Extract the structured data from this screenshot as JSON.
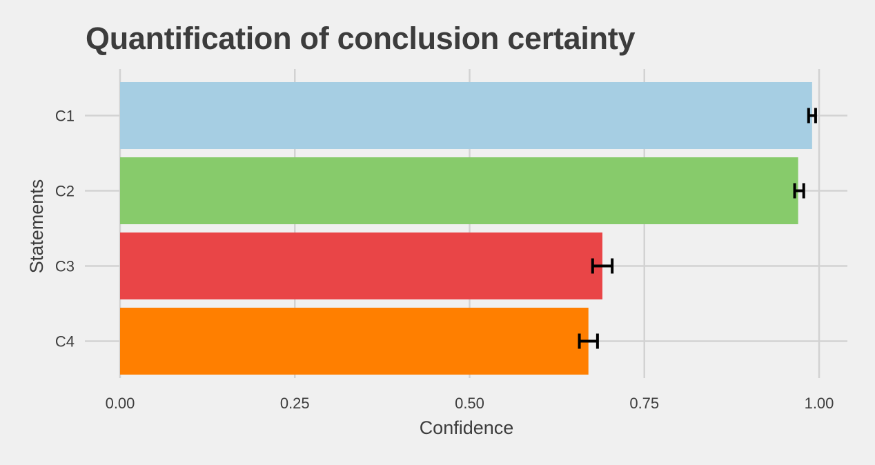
{
  "chart_data": {
    "type": "bar",
    "orientation": "horizontal",
    "title": "Quantification of conclusion certainty",
    "xlabel": "Confidence",
    "ylabel": "Statements",
    "categories": [
      "C1",
      "C2",
      "C3",
      "C4"
    ],
    "values": [
      0.99,
      0.97,
      0.69,
      0.67
    ],
    "error_low": [
      0.985,
      0.965,
      0.676,
      0.657
    ],
    "error_high": [
      0.995,
      0.978,
      0.704,
      0.683
    ],
    "colors": [
      "#a6cee3",
      "#87cb6b",
      "#e94547",
      "#ff7f00"
    ],
    "xlim": [
      0,
      1
    ],
    "xticks": [
      0,
      0.25,
      0.5,
      0.75,
      1
    ],
    "xtick_labels": [
      "0.00",
      "0.25",
      "0.50",
      "0.75",
      "1.00"
    ],
    "grid": true,
    "legend": "none"
  }
}
